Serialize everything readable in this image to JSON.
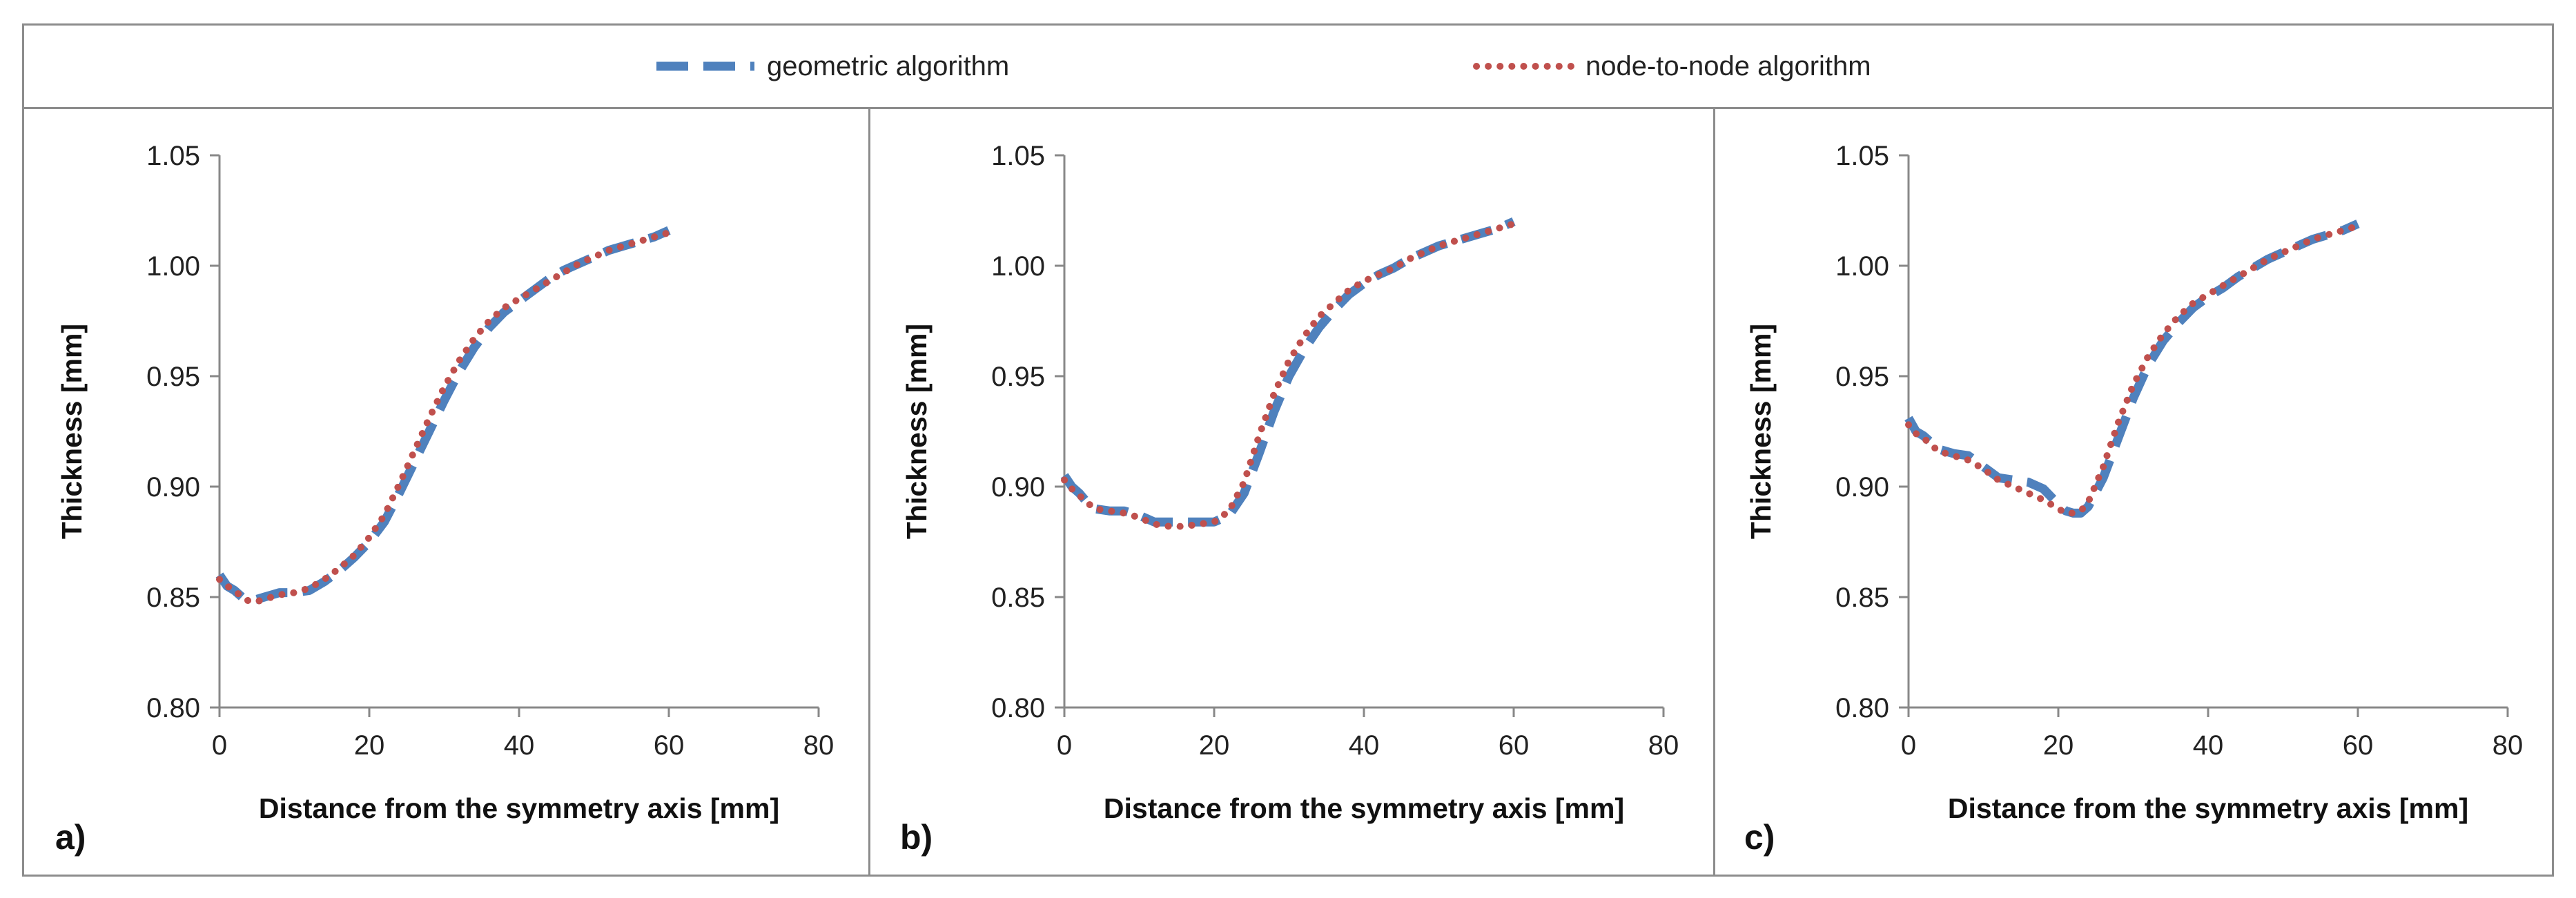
{
  "legend": {
    "series": [
      {
        "name": "geometric algorithm",
        "color": "#4f81bd",
        "style": "dashed"
      },
      {
        "name": "node-to-node algorithm",
        "color": "#c0504d",
        "style": "dotted"
      }
    ]
  },
  "chart_data": [
    {
      "type": "line",
      "panel_label": "a)",
      "xlabel": "Distance from the symmetry axis [mm]",
      "ylabel": "Thickness [mm]",
      "xlim": [
        0,
        80
      ],
      "ylim": [
        0.8,
        1.05
      ],
      "xticks": [
        "0",
        "20",
        "40",
        "60",
        "80"
      ],
      "yticks": [
        "0.80",
        "0.85",
        "0.90",
        "0.95",
        "1.00",
        "1.05"
      ],
      "series": [
        {
          "name": "geometric algorithm",
          "x": [
            0,
            1,
            2,
            3,
            4,
            5,
            6,
            7,
            8,
            10,
            12,
            14,
            16,
            18,
            20,
            22,
            24,
            26,
            28,
            30,
            32,
            34,
            36,
            38,
            40,
            42,
            44,
            46,
            48,
            50,
            52,
            54,
            56,
            58,
            60
          ],
          "y": [
            0.86,
            0.855,
            0.853,
            0.85,
            0.849,
            0.849,
            0.85,
            0.851,
            0.852,
            0.852,
            0.853,
            0.857,
            0.862,
            0.868,
            0.875,
            0.884,
            0.897,
            0.911,
            0.925,
            0.939,
            0.952,
            0.963,
            0.972,
            0.979,
            0.984,
            0.989,
            0.994,
            0.998,
            1.001,
            1.004,
            1.007,
            1.009,
            1.011,
            1.013,
            1.016
          ]
        },
        {
          "name": "node-to-node algorithm",
          "x": [
            0,
            1,
            2,
            3,
            4,
            5,
            6,
            7,
            8,
            10,
            12,
            14,
            16,
            18,
            20,
            22,
            24,
            26,
            28,
            30,
            32,
            34,
            36,
            38,
            40,
            42,
            44,
            46,
            48,
            50,
            52,
            54,
            56,
            58,
            60
          ],
          "y": [
            0.858,
            0.855,
            0.853,
            0.85,
            0.848,
            0.848,
            0.849,
            0.85,
            0.851,
            0.852,
            0.854,
            0.858,
            0.863,
            0.869,
            0.877,
            0.887,
            0.901,
            0.916,
            0.931,
            0.945,
            0.957,
            0.967,
            0.975,
            0.981,
            0.985,
            0.989,
            0.993,
            0.997,
            1.001,
            1.004,
            1.007,
            1.009,
            1.011,
            1.013,
            1.015
          ]
        }
      ]
    },
    {
      "type": "line",
      "panel_label": "b)",
      "xlabel": "Distance from the symmetry axis [mm]",
      "ylabel": "Thickness [mm]",
      "xlim": [
        0,
        80
      ],
      "ylim": [
        0.8,
        1.05
      ],
      "xticks": [
        "0",
        "20",
        "40",
        "60",
        "80"
      ],
      "yticks": [
        "0.80",
        "0.85",
        "0.90",
        "0.95",
        "1.00",
        "1.05"
      ],
      "series": [
        {
          "name": "geometric algorithm",
          "x": [
            0,
            1,
            2,
            3,
            4,
            6,
            8,
            10,
            12,
            14,
            16,
            18,
            20,
            22,
            24,
            26,
            28,
            30,
            32,
            34,
            36,
            38,
            40,
            42,
            44,
            46,
            48,
            50,
            52,
            54,
            56,
            58,
            60
          ],
          "y": [
            0.905,
            0.9,
            0.897,
            0.893,
            0.89,
            0.889,
            0.889,
            0.887,
            0.884,
            0.884,
            0.884,
            0.884,
            0.884,
            0.887,
            0.897,
            0.915,
            0.934,
            0.95,
            0.962,
            0.972,
            0.98,
            0.987,
            0.992,
            0.996,
            0.999,
            1.003,
            1.006,
            1.009,
            1.011,
            1.013,
            1.015,
            1.017,
            1.02
          ]
        },
        {
          "name": "node-to-node algorithm",
          "x": [
            0,
            1,
            2,
            3,
            4,
            6,
            8,
            10,
            12,
            14,
            16,
            18,
            20,
            22,
            24,
            26,
            28,
            30,
            32,
            34,
            36,
            38,
            40,
            42,
            44,
            46,
            48,
            50,
            52,
            54,
            56,
            58,
            60
          ],
          "y": [
            0.903,
            0.899,
            0.896,
            0.893,
            0.89,
            0.889,
            0.888,
            0.886,
            0.883,
            0.882,
            0.882,
            0.883,
            0.884,
            0.889,
            0.902,
            0.923,
            0.942,
            0.957,
            0.968,
            0.977,
            0.983,
            0.989,
            0.993,
            0.996,
            0.999,
            1.003,
            1.006,
            1.009,
            1.011,
            1.013,
            1.015,
            1.017,
            1.019
          ]
        }
      ]
    },
    {
      "type": "line",
      "panel_label": "c)",
      "xlabel": "Distance from the symmetry axis [mm]",
      "ylabel": "Thickness [mm]",
      "xlim": [
        0,
        80
      ],
      "ylim": [
        0.8,
        1.05
      ],
      "xticks": [
        "0",
        "20",
        "40",
        "60",
        "80"
      ],
      "yticks": [
        "0.80",
        "0.85",
        "0.90",
        "0.95",
        "1.00",
        "1.05"
      ],
      "series": [
        {
          "name": "geometric algorithm",
          "x": [
            0,
            1,
            2,
            3,
            4,
            6,
            8,
            10,
            12,
            14,
            16,
            18,
            20,
            21,
            22,
            23,
            24,
            26,
            28,
            30,
            32,
            34,
            36,
            38,
            40,
            42,
            44,
            46,
            48,
            50,
            52,
            54,
            56,
            58,
            60
          ],
          "y": [
            0.931,
            0.925,
            0.923,
            0.92,
            0.917,
            0.915,
            0.914,
            0.909,
            0.904,
            0.903,
            0.902,
            0.899,
            0.892,
            0.889,
            0.888,
            0.888,
            0.891,
            0.904,
            0.922,
            0.94,
            0.955,
            0.966,
            0.974,
            0.981,
            0.986,
            0.99,
            0.995,
            0.999,
            1.003,
            1.006,
            1.009,
            1.012,
            1.014,
            1.016,
            1.019
          ]
        },
        {
          "name": "node-to-node algorithm",
          "x": [
            0,
            1,
            2,
            3,
            4,
            6,
            8,
            10,
            12,
            14,
            16,
            18,
            20,
            21,
            22,
            23,
            24,
            26,
            28,
            30,
            32,
            34,
            36,
            38,
            40,
            42,
            44,
            46,
            48,
            50,
            52,
            54,
            56,
            58,
            60
          ],
          "y": [
            0.928,
            0.924,
            0.922,
            0.919,
            0.916,
            0.914,
            0.912,
            0.908,
            0.903,
            0.9,
            0.897,
            0.894,
            0.89,
            0.888,
            0.888,
            0.889,
            0.893,
            0.909,
            0.929,
            0.946,
            0.959,
            0.969,
            0.977,
            0.983,
            0.987,
            0.991,
            0.995,
            0.999,
            1.003,
            1.006,
            1.009,
            1.012,
            1.014,
            1.016,
            1.018
          ]
        }
      ]
    }
  ]
}
